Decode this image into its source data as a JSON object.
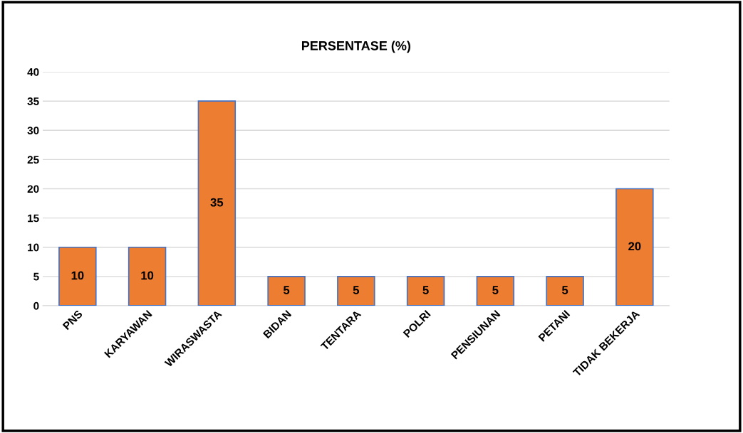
{
  "chart_data": {
    "type": "bar",
    "title": "PERSENTASE (%)",
    "categories": [
      "PNS",
      "KARYAWAN",
      "WIRASWASTA",
      "BIDAN",
      "TENTARA",
      "POLRI",
      "PENSIUNAN",
      "PETANI",
      "TIDAK BEKERJA"
    ],
    "values": [
      10,
      10,
      35,
      5,
      5,
      5,
      5,
      5,
      20
    ],
    "color": "#ed7d31",
    "ylim": [
      0,
      40
    ],
    "yticks": [
      0,
      5,
      10,
      15,
      20,
      25,
      30,
      35,
      40
    ],
    "grid": "y",
    "data_labels": true
  }
}
